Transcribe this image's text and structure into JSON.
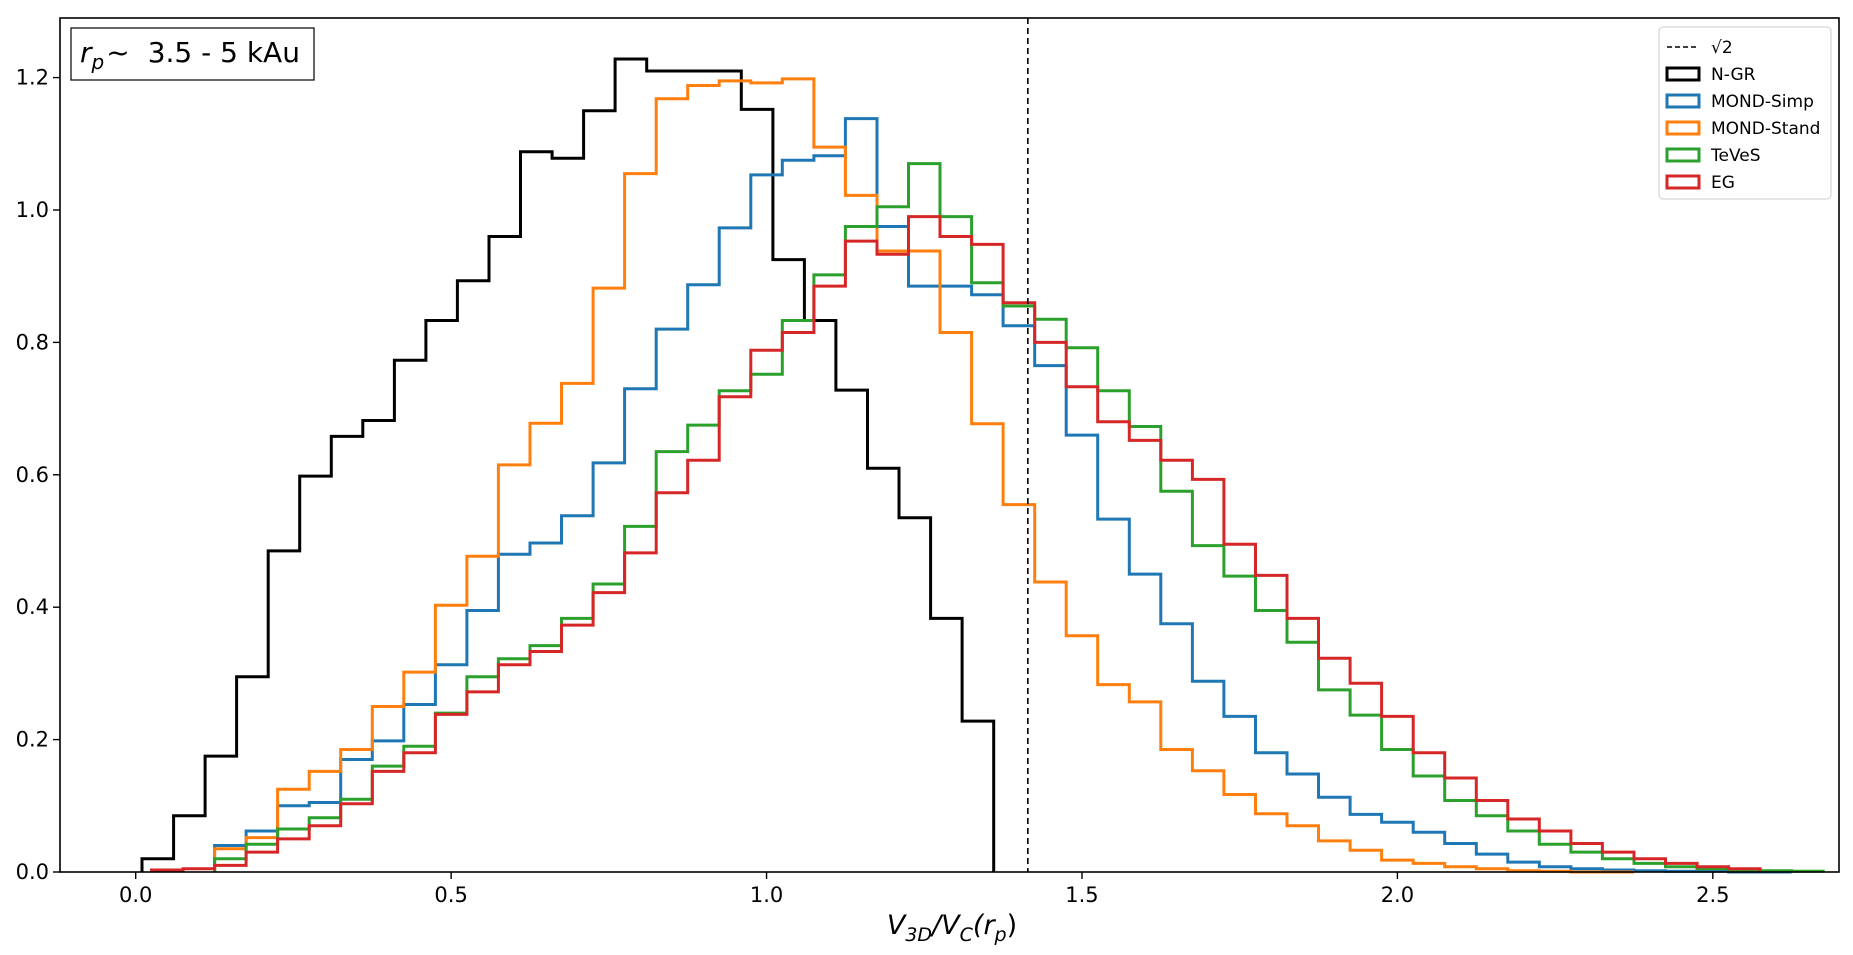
{
  "chart_data": {
    "type": "step-histogram",
    "xlabel": {
      "main": "V",
      "sub1": "3D",
      "mid": "/V",
      "sub2": "C",
      "paren_open": "(r",
      "sub3": "p",
      "paren_close": ")"
    },
    "ylabel": "",
    "xlim": [
      -0.12,
      2.7
    ],
    "ylim": [
      0,
      1.29
    ],
    "xticks": [
      0.0,
      0.5,
      1.0,
      1.5,
      2.0,
      2.5
    ],
    "xtick_labels": [
      "0.0",
      "0.5",
      "1.0",
      "1.5",
      "2.0",
      "2.5"
    ],
    "yticks": [
      0.0,
      0.2,
      0.4,
      0.6,
      0.8,
      1.0,
      1.2
    ],
    "ytick_labels": [
      "0.0",
      "0.2",
      "0.4",
      "0.6",
      "0.8",
      "1.0",
      "1.2"
    ],
    "annotation": {
      "symbol": "r",
      "sub": "p",
      "tilde": "~",
      "text": "3.5 - 5 kAu"
    },
    "vline": {
      "x": 1.4142,
      "label": "√2",
      "style": "dashed",
      "color": "#000000"
    },
    "legend_position": "top-right",
    "series": [
      {
        "name": "N-GR",
        "color": "#000000",
        "x_start": 0.01,
        "bin_width": 0.05,
        "values": [
          0.02,
          0.085,
          0.175,
          0.295,
          0.485,
          0.598,
          0.658,
          0.682,
          0.773,
          0.833,
          0.893,
          0.96,
          1.088,
          1.078,
          1.15,
          1.228,
          1.21,
          1.21,
          1.21,
          1.152,
          0.925,
          0.833,
          0.728,
          0.61,
          0.535,
          0.383,
          0.228
        ]
      },
      {
        "name": "MOND-Simp",
        "color": "#1f77b4",
        "x_start": 0.125,
        "bin_width": 0.05,
        "values": [
          0.04,
          0.062,
          0.1,
          0.105,
          0.17,
          0.198,
          0.253,
          0.313,
          0.395,
          0.48,
          0.497,
          0.538,
          0.618,
          0.73,
          0.82,
          0.887,
          0.973,
          1.053,
          1.075,
          1.082,
          1.138,
          0.975,
          0.885,
          0.885,
          0.872,
          0.825,
          0.765,
          0.66,
          0.533,
          0.45,
          0.375,
          0.288,
          0.235,
          0.18,
          0.148,
          0.113,
          0.087,
          0.075,
          0.06,
          0.043,
          0.027,
          0.015,
          0.008,
          0.005,
          0.003,
          0.002,
          0.001,
          0.001,
          0.0,
          0.0
        ]
      },
      {
        "name": "MOND-Stand",
        "color": "#ff7f0e",
        "x_start": 0.125,
        "bin_width": 0.05,
        "values": [
          0.035,
          0.052,
          0.125,
          0.152,
          0.185,
          0.25,
          0.302,
          0.403,
          0.477,
          0.615,
          0.678,
          0.738,
          0.882,
          1.055,
          1.168,
          1.188,
          1.195,
          1.192,
          1.198,
          1.095,
          1.022,
          0.938,
          0.938,
          0.815,
          0.677,
          0.555,
          0.438,
          0.357,
          0.283,
          0.257,
          0.185,
          0.153,
          0.117,
          0.088,
          0.07,
          0.047,
          0.033,
          0.018,
          0.013,
          0.008,
          0.005,
          0.002,
          0.001,
          0.0,
          0.0
        ]
      },
      {
        "name": "TeVeS",
        "color": "#2ca02c",
        "x_start": 0.125,
        "bin_width": 0.05,
        "values": [
          0.02,
          0.042,
          0.065,
          0.082,
          0.11,
          0.16,
          0.19,
          0.24,
          0.295,
          0.322,
          0.342,
          0.383,
          0.435,
          0.522,
          0.635,
          0.675,
          0.727,
          0.752,
          0.833,
          0.902,
          0.975,
          1.005,
          1.07,
          0.99,
          0.89,
          0.855,
          0.835,
          0.792,
          0.727,
          0.673,
          0.575,
          0.493,
          0.447,
          0.395,
          0.347,
          0.275,
          0.237,
          0.185,
          0.145,
          0.108,
          0.085,
          0.062,
          0.042,
          0.03,
          0.02,
          0.013,
          0.008,
          0.005,
          0.003,
          0.002,
          0.001
        ]
      },
      {
        "name": "EG",
        "color": "#d62728",
        "x_start": 0.025,
        "bin_width": 0.05,
        "values": [
          0.003,
          0.005,
          0.01,
          0.03,
          0.05,
          0.07,
          0.103,
          0.152,
          0.18,
          0.238,
          0.272,
          0.313,
          0.333,
          0.373,
          0.422,
          0.482,
          0.573,
          0.622,
          0.718,
          0.788,
          0.815,
          0.885,
          0.953,
          0.933,
          0.99,
          0.96,
          0.948,
          0.86,
          0.8,
          0.733,
          0.68,
          0.652,
          0.622,
          0.593,
          0.495,
          0.448,
          0.383,
          0.323,
          0.285,
          0.235,
          0.18,
          0.142,
          0.108,
          0.08,
          0.062,
          0.043,
          0.03,
          0.02,
          0.013,
          0.008,
          0.005
        ]
      }
    ]
  }
}
